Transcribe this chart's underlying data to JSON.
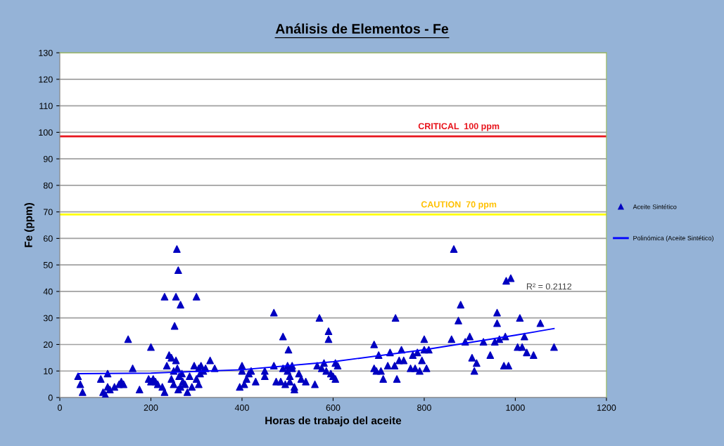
{
  "chart_data": {
    "type": "scatter",
    "title": "Análisis de Elementos - Fe",
    "xlabel": "Horas de trabajo del aceite",
    "ylabel": "Fe (ppm)",
    "xlim": [
      0,
      1200
    ],
    "ylim": [
      0,
      130
    ],
    "xticks": [
      0,
      200,
      400,
      600,
      800,
      1000,
      1200
    ],
    "yticks": [
      0,
      10,
      20,
      30,
      40,
      50,
      60,
      70,
      80,
      90,
      100,
      110,
      120,
      130
    ],
    "grid": "y",
    "legend": "right",
    "series": [
      {
        "name": "Aceite Sintético",
        "marker": "triangle",
        "color": "#0000c0",
        "x": [
          40,
          45,
          50,
          90,
          95,
          100,
          105,
          105,
          110,
          120,
          130,
          135,
          140,
          150,
          160,
          175,
          195,
          200,
          200,
          205,
          210,
          215,
          225,
          230,
          230,
          235,
          240,
          245,
          245,
          250,
          250,
          252,
          255,
          255,
          257,
          260,
          258,
          260,
          262,
          265,
          265,
          268,
          270,
          275,
          280,
          285,
          290,
          295,
          300,
          300,
          305,
          305,
          308,
          310,
          315,
          320,
          330,
          340,
          395,
          400,
          400,
          405,
          410,
          415,
          420,
          430,
          450,
          450,
          470,
          470,
          475,
          485,
          490,
          490,
          495,
          500,
          500,
          502,
          505,
          505,
          510,
          510,
          515,
          515,
          525,
          530,
          540,
          560,
          565,
          570,
          575,
          580,
          585,
          590,
          590,
          595,
          600,
          605,
          605,
          610,
          690,
          690,
          695,
          700,
          705,
          710,
          720,
          725,
          735,
          737,
          740,
          745,
          750,
          755,
          770,
          775,
          780,
          785,
          790,
          795,
          800,
          800,
          805,
          810,
          860,
          865,
          875,
          880,
          890,
          900,
          905,
          910,
          915,
          930,
          945,
          955,
          960,
          960,
          965,
          975,
          978,
          980,
          985,
          990,
          1005,
          1010,
          1015,
          1020,
          1025,
          1040,
          1055,
          1085
        ],
        "values": [
          8,
          5,
          2,
          7,
          2,
          1,
          9,
          4,
          3,
          4,
          5,
          6,
          5,
          22,
          11,
          3,
          7,
          19,
          6,
          7,
          6,
          5,
          4,
          38,
          2,
          12,
          16,
          15,
          7,
          10,
          5,
          27,
          38,
          14,
          56,
          48,
          11,
          3,
          8,
          35,
          4,
          9,
          6,
          5,
          2,
          8,
          4,
          12,
          38,
          7,
          11,
          5,
          9,
          12,
          10,
          11,
          14,
          11,
          4,
          12,
          10,
          5,
          7,
          9,
          10,
          6,
          10,
          8,
          32,
          12,
          6,
          6,
          23,
          11,
          5,
          12,
          10,
          18,
          8,
          6,
          11,
          12,
          4,
          3,
          9,
          7,
          6,
          5,
          12,
          30,
          11,
          13,
          10,
          25,
          22,
          9,
          8,
          7,
          13,
          12,
          20,
          11,
          10,
          16,
          10,
          7,
          12,
          17,
          12,
          30,
          7,
          14,
          18,
          14,
          11,
          16,
          11,
          17,
          10,
          14,
          22,
          18,
          11,
          18,
          22,
          56,
          29,
          35,
          21,
          23,
          15,
          10,
          13,
          21,
          16,
          21,
          32,
          28,
          22,
          12,
          23,
          44,
          12,
          45,
          19,
          30,
          19,
          23,
          17,
          16,
          28,
          19
        ]
      },
      {
        "name": "Polinómica (Aceite Sintético)",
        "type": "line",
        "color": "#0000ff",
        "x": [
          40,
          200,
          400,
          600,
          800,
          1000,
          1085
        ],
        "values": [
          9,
          9.2,
          10.5,
          13.5,
          18,
          23.5,
          26
        ]
      }
    ],
    "ref_lines": [
      {
        "axis": "y",
        "value": 98.5,
        "label": "CRITICAL  100 ppm",
        "color": "#e8141c"
      },
      {
        "axis": "y",
        "value": 69,
        "label": "CAUTION  70 ppm",
        "color": "#ffff00"
      }
    ],
    "annotations": [
      "R² = 0.2112"
    ]
  }
}
